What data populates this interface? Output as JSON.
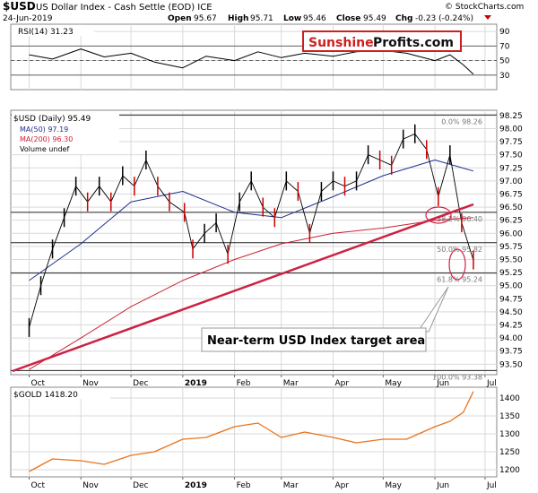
{
  "header": {
    "symbol": "$USD",
    "name": "US Dollar Index - Cash Settle (EOD) ICE",
    "date": "24-Jun-2019",
    "open_label": "Open",
    "open": "95.67",
    "high_label": "High",
    "high": "95.71",
    "low_label": "Low",
    "low": "95.46",
    "close_label": "Close",
    "close": "95.49",
    "chg_label": "Chg",
    "chg": "-0.23 (-0.24%)",
    "credit": "© StockCharts.com"
  },
  "logo": {
    "part1": "Sunshine",
    "part2": "Profits.com"
  },
  "colors": {
    "price": "#000000",
    "price_down": "#cc0000",
    "ma50": "#1f2f8c",
    "ma200": "#cc2233",
    "gold": "#e8741c",
    "trend": "#cc2244",
    "grid": "#d9d9d9",
    "logo_red": "#cc1f1f",
    "logo_box": "#cc1f1f"
  },
  "chart_data": [
    {
      "type": "line",
      "title": "RSI(14) 31.23",
      "y_ticks": [
        30,
        50,
        70,
        90
      ],
      "ylim": [
        10,
        100
      ],
      "reference_lines": [
        30,
        50,
        70
      ],
      "x": [
        "2018-10-01",
        "2018-10-15",
        "2018-11-01",
        "2018-11-15",
        "2018-12-01",
        "2018-12-15",
        "2019-01-01",
        "2019-01-15",
        "2019-02-01",
        "2019-02-15",
        "2019-03-01",
        "2019-03-15",
        "2019-04-01",
        "2019-04-15",
        "2019-05-01",
        "2019-05-15",
        "2019-06-01",
        "2019-06-10",
        "2019-06-18",
        "2019-06-24"
      ],
      "values": [
        58,
        52,
        66,
        55,
        60,
        48,
        40,
        56,
        50,
        62,
        54,
        60,
        56,
        62,
        64,
        60,
        50,
        58,
        44,
        31.23
      ]
    },
    {
      "type": "line",
      "title": "$USD (Daily) 95.49",
      "y_ticks": [
        93.5,
        93.75,
        94.0,
        94.25,
        94.5,
        94.75,
        95.0,
        95.25,
        95.5,
        95.75,
        96.0,
        96.25,
        96.5,
        96.75,
        97.0,
        97.25,
        97.5,
        97.75,
        98.0,
        98.25
      ],
      "ylim": [
        93.3,
        98.35
      ],
      "x_ticks": [
        "Oct",
        "Nov",
        "Dec",
        "2019",
        "Feb",
        "Mar",
        "Apr",
        "May",
        "Jun",
        "Jul"
      ],
      "series": [
        {
          "name": "$USD (Daily) 95.49",
          "x": [
            "2018-10-01",
            "2018-10-08",
            "2018-10-15",
            "2018-10-22",
            "2018-10-29",
            "2018-11-05",
            "2018-11-12",
            "2018-11-19",
            "2018-11-26",
            "2018-12-03",
            "2018-12-10",
            "2018-12-17",
            "2018-12-24",
            "2019-01-02",
            "2019-01-07",
            "2019-01-14",
            "2019-01-21",
            "2019-01-28",
            "2019-02-04",
            "2019-02-11",
            "2019-02-18",
            "2019-02-25",
            "2019-03-04",
            "2019-03-11",
            "2019-03-18",
            "2019-03-25",
            "2019-04-01",
            "2019-04-08",
            "2019-04-15",
            "2019-04-22",
            "2019-04-29",
            "2019-05-06",
            "2019-05-13",
            "2019-05-20",
            "2019-05-27",
            "2019-06-03",
            "2019-06-10",
            "2019-06-17",
            "2019-06-24"
          ],
          "values": [
            94.2,
            95.0,
            95.7,
            96.3,
            96.9,
            96.6,
            96.9,
            96.6,
            97.1,
            96.9,
            97.4,
            96.9,
            96.6,
            96.4,
            95.7,
            96.0,
            96.2,
            95.6,
            96.6,
            97.0,
            96.5,
            96.3,
            97.0,
            96.8,
            96.0,
            96.8,
            97.0,
            96.9,
            97.0,
            97.5,
            97.4,
            97.3,
            97.8,
            97.9,
            97.6,
            96.7,
            97.5,
            96.2,
            95.49
          ]
        },
        {
          "name": "MA(50) 97.19",
          "x": [
            "2018-10-01",
            "2018-11-01",
            "2018-12-01",
            "2019-01-01",
            "2019-02-01",
            "2019-03-01",
            "2019-04-01",
            "2019-05-01",
            "2019-06-01",
            "2019-06-24"
          ],
          "values": [
            95.1,
            95.8,
            96.6,
            96.8,
            96.4,
            96.3,
            96.7,
            97.1,
            97.4,
            97.19
          ]
        },
        {
          "name": "MA(200) 96.30",
          "x": [
            "2018-10-01",
            "2018-11-01",
            "2018-12-01",
            "2019-01-01",
            "2019-02-01",
            "2019-03-01",
            "2019-04-01",
            "2019-05-01",
            "2019-06-01",
            "2019-06-24"
          ],
          "values": [
            93.4,
            94.0,
            94.6,
            95.1,
            95.5,
            95.8,
            96.0,
            96.1,
            96.25,
            96.3
          ]
        }
      ],
      "fibonacci": [
        {
          "label": "0.0% 98.26",
          "value": 98.26
        },
        {
          "label": "38.2% 96.40",
          "value": 96.4
        },
        {
          "label": "50.0% 95.82",
          "value": 95.82
        },
        {
          "label": "61.8% 95.24",
          "value": 95.24
        },
        {
          "label": "100.0% 93.38",
          "value": 93.38
        }
      ],
      "annotation": "Near-term USD Index target area"
    },
    {
      "type": "line",
      "title": "$GOLD 1418.20",
      "y_ticks": [
        1200,
        1250,
        1300,
        1350,
        1400
      ],
      "ylim": [
        1180,
        1430
      ],
      "x_ticks": [
        "Oct",
        "Nov",
        "Dec",
        "2019",
        "Feb",
        "Mar",
        "Apr",
        "May",
        "Jun",
        "Jul"
      ],
      "series": [
        {
          "name": "$GOLD 1418.20",
          "x": [
            "2018-10-01",
            "2018-10-15",
            "2018-11-01",
            "2018-11-15",
            "2018-12-01",
            "2018-12-15",
            "2019-01-01",
            "2019-01-15",
            "2019-02-01",
            "2019-02-15",
            "2019-03-01",
            "2019-03-15",
            "2019-04-01",
            "2019-04-15",
            "2019-05-01",
            "2019-05-15",
            "2019-06-01",
            "2019-06-10",
            "2019-06-18",
            "2019-06-24"
          ],
          "values": [
            1195,
            1230,
            1225,
            1215,
            1240,
            1250,
            1285,
            1290,
            1320,
            1330,
            1290,
            1305,
            1290,
            1275,
            1285,
            1285,
            1320,
            1335,
            1360,
            1418.2
          ]
        }
      ]
    }
  ],
  "legend": {
    "ma50": "MA(50) 97.19",
    "ma200": "MA(200) 96.30",
    "volume": "Volume undef"
  }
}
